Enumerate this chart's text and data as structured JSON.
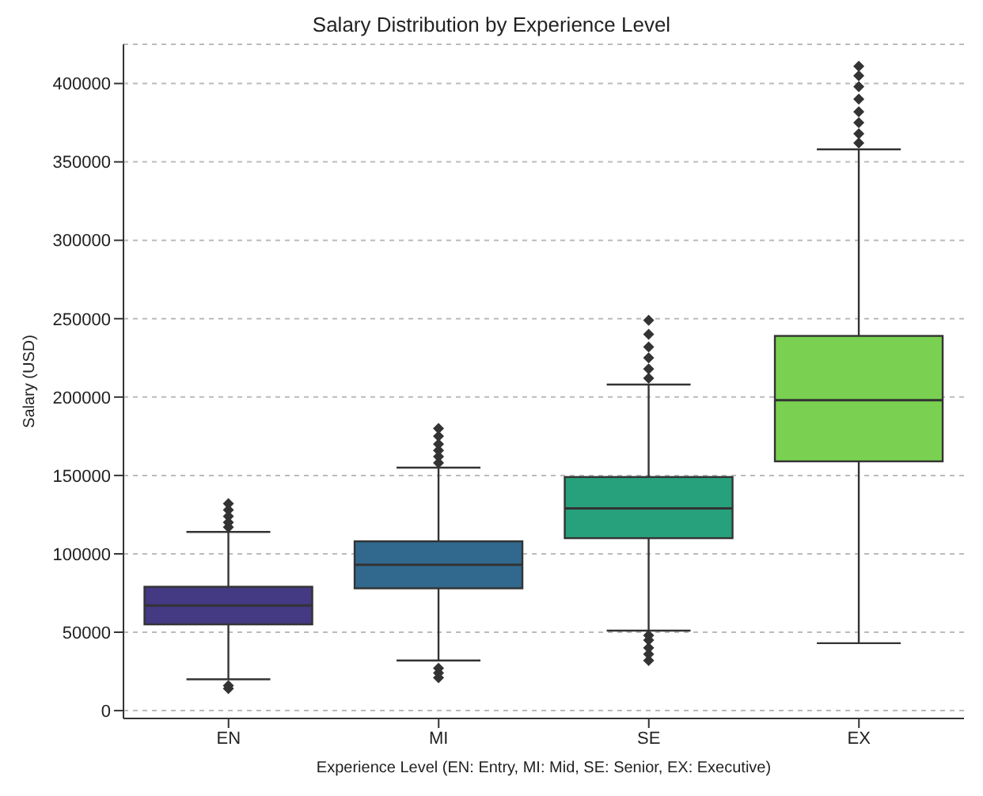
{
  "chart_data": {
    "type": "box",
    "title": "Salary Distribution by Experience Level",
    "xlabel": "Experience Level (EN: Entry, MI: Mid, SE: Senior, EX: Executive)",
    "ylabel": "Salary (USD)",
    "categories": [
      "EN",
      "MI",
      "SE",
      "EX"
    ],
    "colors": [
      "#443983",
      "#31688e",
      "#27a07c",
      "#7ad151"
    ],
    "boxes": [
      {
        "low": 20000,
        "q1": 55000,
        "median": 67000,
        "q3": 79000,
        "high": 114000,
        "outliers": [
          14000,
          16000,
          117000,
          120000,
          124000,
          128000,
          132000
        ]
      },
      {
        "low": 32000,
        "q1": 78000,
        "median": 93000,
        "q3": 108000,
        "high": 155000,
        "outliers": [
          21000,
          24000,
          27000,
          158000,
          162000,
          166000,
          170000,
          175000,
          180000
        ]
      },
      {
        "low": 51000,
        "q1": 110000,
        "median": 129000,
        "q3": 149000,
        "high": 208000,
        "outliers": [
          32000,
          36000,
          40000,
          45000,
          48000,
          212000,
          218000,
          225000,
          232000,
          240000,
          249000
        ]
      },
      {
        "low": 43000,
        "q1": 159000,
        "median": 198000,
        "q3": 239000,
        "high": 358000,
        "outliers": [
          362000,
          368000,
          375000,
          382000,
          390000,
          398000,
          405000,
          411000
        ]
      }
    ],
    "ylim": [
      -5000,
      425000
    ],
    "yticks": [
      0,
      50000,
      100000,
      150000,
      200000,
      250000,
      300000,
      350000,
      400000
    ],
    "grid": "y"
  }
}
